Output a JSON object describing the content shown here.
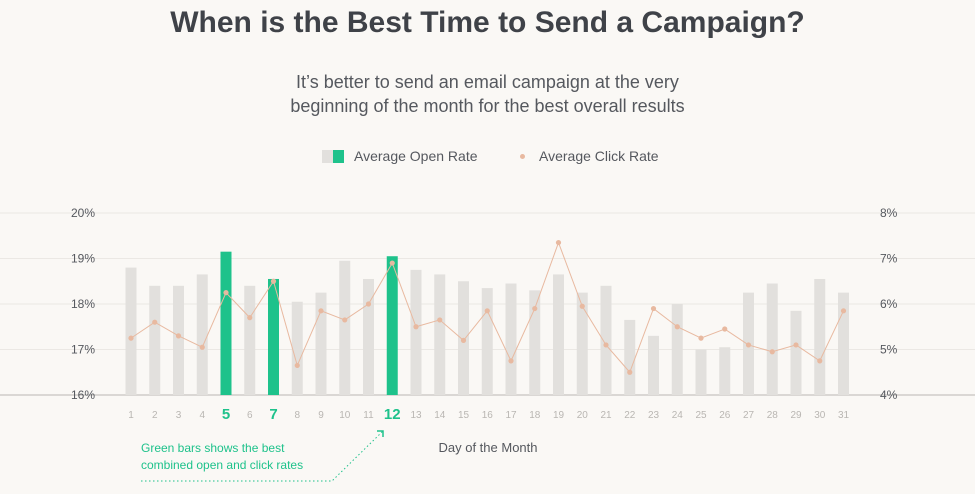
{
  "title": "When is the Best Time to Send a Campaign?",
  "subtitle_lines": [
    "It’s better to send an email campaign at the very",
    "beginning of the month for the best overall results"
  ],
  "legend": {
    "open": "Average Open Rate",
    "click": "Average Click Rate"
  },
  "colors": {
    "bar": "#e2e0dd",
    "highlight": "#1ec28b",
    "line": "#e8b9a0",
    "text": "#55585e",
    "axis": "#9a9a9a"
  },
  "annotation": {
    "lines": [
      "Green bars shows the best",
      "combined open and click rates"
    ]
  },
  "chart_data": {
    "type": "bar",
    "xlabel": "Day of the Month",
    "categories": [
      "1",
      "2",
      "3",
      "4",
      "5",
      "6",
      "7",
      "8",
      "9",
      "10",
      "11",
      "12",
      "13",
      "14",
      "15",
      "16",
      "17",
      "18",
      "19",
      "20",
      "21",
      "22",
      "23",
      "24",
      "25",
      "26",
      "27",
      "28",
      "29",
      "30",
      "31"
    ],
    "highlighted": [
      "5",
      "7",
      "12"
    ],
    "ylim_left": [
      16,
      20
    ],
    "ylim_right": [
      4,
      8
    ],
    "y_ticks_left": [
      "16%",
      "17%",
      "18%",
      "19%",
      "20%"
    ],
    "y_ticks_right": [
      "4%",
      "5%",
      "6%",
      "7%",
      "8%"
    ],
    "series": [
      {
        "name": "Average Open Rate",
        "axis": "left",
        "values": [
          18.8,
          18.4,
          18.4,
          18.65,
          19.15,
          18.4,
          18.55,
          18.05,
          18.25,
          18.95,
          18.55,
          19.05,
          18.75,
          18.65,
          18.5,
          18.35,
          18.45,
          18.3,
          18.65,
          18.25,
          18.4,
          17.65,
          17.3,
          18.0,
          17.0,
          17.05,
          18.25,
          18.45,
          17.85,
          18.55,
          18.25
        ]
      },
      {
        "name": "Average Click Rate",
        "axis": "right",
        "values": [
          5.25,
          5.6,
          5.3,
          5.05,
          6.25,
          5.7,
          6.5,
          4.65,
          5.85,
          5.65,
          6.0,
          6.9,
          5.5,
          5.65,
          5.2,
          5.85,
          4.75,
          5.9,
          7.35,
          5.95,
          5.1,
          4.5,
          5.9,
          5.5,
          5.25,
          5.45,
          5.1,
          4.95,
          5.1,
          4.75,
          5.85
        ]
      }
    ],
    "grid": true,
    "legend_position": "top-center"
  }
}
